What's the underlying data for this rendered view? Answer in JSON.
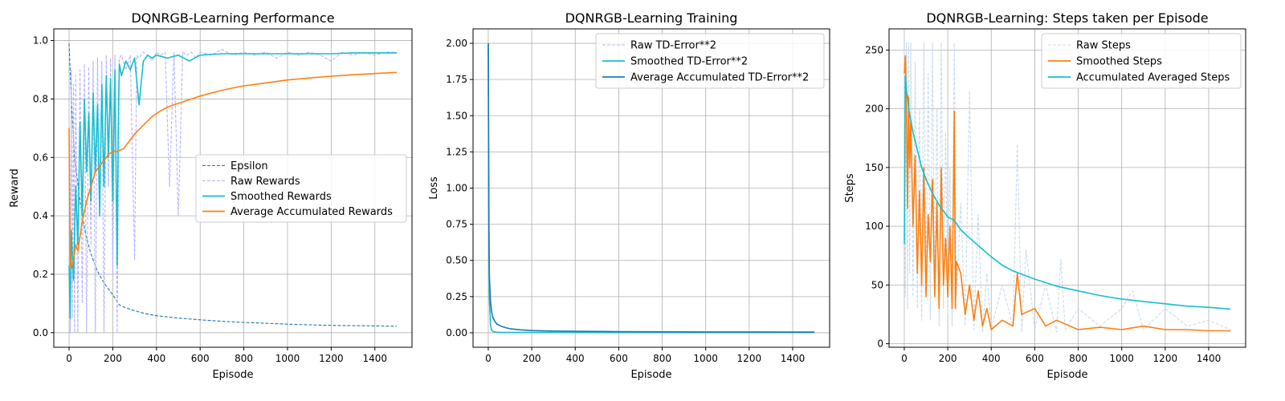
{
  "chart_data": [
    {
      "type": "line",
      "title": "DQNRGB-Learning Performance",
      "xlabel": "Episode",
      "ylabel": "Reward",
      "xlim": [
        -70,
        1570
      ],
      "ylim": [
        -0.05,
        1.04
      ],
      "xticks": [
        0,
        200,
        400,
        600,
        800,
        1000,
        1200,
        1400
      ],
      "yticks": [
        0.0,
        0.2,
        0.4,
        0.6,
        0.8,
        1.0
      ],
      "ytick_labels": [
        "0.0",
        "0.2",
        "0.4",
        "0.6",
        "0.8",
        "1.0"
      ],
      "grid": true,
      "legend_position": "center-right",
      "series": [
        {
          "name": "Epsilon",
          "color": "#1f77b4",
          "style": "dashed",
          "x": [
            0,
            10,
            25,
            50,
            75,
            100,
            130,
            160,
            200,
            230,
            260,
            300,
            350,
            400,
            500,
            600,
            700,
            800,
            900,
            1000,
            1100,
            1200,
            1300,
            1400,
            1500
          ],
          "y": [
            0.99,
            0.8,
            0.6,
            0.45,
            0.34,
            0.27,
            0.21,
            0.17,
            0.13,
            0.095,
            0.085,
            0.075,
            0.065,
            0.058,
            0.05,
            0.044,
            0.039,
            0.035,
            0.032,
            0.029,
            0.027,
            0.025,
            0.024,
            0.023,
            0.022
          ]
        },
        {
          "name": "Raw Rewards",
          "color": "#b3b3ff",
          "style": "dashed",
          "x": [
            0,
            5,
            10,
            15,
            20,
            25,
            30,
            40,
            50,
            60,
            70,
            80,
            90,
            100,
            110,
            120,
            130,
            140,
            150,
            160,
            170,
            180,
            190,
            200,
            210,
            220,
            230,
            240,
            260,
            280,
            300,
            310,
            320,
            340,
            360,
            380,
            400,
            420,
            440,
            460,
            480,
            500,
            520,
            540,
            560,
            580,
            600,
            650,
            700,
            750,
            800,
            850,
            900,
            950,
            1000,
            1050,
            1100,
            1150,
            1200,
            1250,
            1300,
            1350,
            1400,
            1450,
            1500
          ],
          "y": [
            0.7,
            0.0,
            0.9,
            0.05,
            0.85,
            0.0,
            0.88,
            0.0,
            0.9,
            0.1,
            0.92,
            0.0,
            0.91,
            0.3,
            0.93,
            0.0,
            0.94,
            0.4,
            0.93,
            0.0,
            0.95,
            0.5,
            0.94,
            0.2,
            0.95,
            0.0,
            0.94,
            0.95,
            0.9,
            0.95,
            0.25,
            0.95,
            0.94,
            0.96,
            0.95,
            0.93,
            0.96,
            0.95,
            0.96,
            0.5,
            0.96,
            0.4,
            0.96,
            0.95,
            0.96,
            0.94,
            0.96,
            0.95,
            0.97,
            0.95,
            0.96,
            0.95,
            0.96,
            0.94,
            0.96,
            0.95,
            0.96,
            0.95,
            0.93,
            0.96,
            0.95,
            0.96,
            0.95,
            0.96,
            0.96
          ]
        },
        {
          "name": "Smoothed Rewards",
          "color": "#17becf",
          "style": "solid",
          "x": [
            0,
            5,
            10,
            20,
            30,
            40,
            50,
            60,
            70,
            80,
            90,
            100,
            110,
            120,
            130,
            140,
            150,
            160,
            170,
            180,
            190,
            200,
            210,
            220,
            225,
            230,
            240,
            260,
            280,
            300,
            320,
            340,
            360,
            380,
            400,
            450,
            500,
            550,
            600,
            700,
            800,
            900,
            1000,
            1100,
            1200,
            1300,
            1400,
            1500
          ],
          "y": [
            0.23,
            0.05,
            0.35,
            0.18,
            0.5,
            0.3,
            0.72,
            0.4,
            0.8,
            0.55,
            0.75,
            0.45,
            0.82,
            0.55,
            0.78,
            0.4,
            0.85,
            0.5,
            0.88,
            0.6,
            0.87,
            0.45,
            0.9,
            0.23,
            0.7,
            0.92,
            0.88,
            0.93,
            0.9,
            0.94,
            0.78,
            0.93,
            0.95,
            0.94,
            0.95,
            0.94,
            0.95,
            0.93,
            0.95,
            0.955,
            0.955,
            0.955,
            0.955,
            0.955,
            0.955,
            0.958,
            0.958,
            0.958
          ]
        },
        {
          "name": "Average Accumulated Rewards",
          "color": "#ff7f0e",
          "style": "solid",
          "x": [
            0,
            5,
            10,
            20,
            30,
            40,
            60,
            80,
            100,
            120,
            150,
            180,
            200,
            220,
            250,
            280,
            300,
            340,
            380,
            420,
            460,
            500,
            600,
            700,
            800,
            900,
            1000,
            1100,
            1200,
            1300,
            1400,
            1500
          ],
          "y": [
            0.7,
            0.23,
            0.22,
            0.25,
            0.3,
            0.28,
            0.38,
            0.45,
            0.5,
            0.55,
            0.58,
            0.61,
            0.62,
            0.62,
            0.63,
            0.66,
            0.68,
            0.71,
            0.74,
            0.76,
            0.775,
            0.785,
            0.81,
            0.83,
            0.845,
            0.855,
            0.865,
            0.872,
            0.878,
            0.883,
            0.887,
            0.891
          ]
        }
      ]
    },
    {
      "type": "line",
      "title": "DQNRGB-Learning Training",
      "xlabel": "Episode",
      "ylabel": "Loss",
      "xlim": [
        -70,
        1570
      ],
      "ylim": [
        -0.1,
        2.1
      ],
      "xticks": [
        0,
        200,
        400,
        600,
        800,
        1000,
        1200,
        1400
      ],
      "yticks": [
        0.0,
        0.25,
        0.5,
        0.75,
        1.0,
        1.25,
        1.5,
        1.75,
        2.0
      ],
      "ytick_labels": [
        "0.00",
        "0.25",
        "0.50",
        "0.75",
        "1.00",
        "1.25",
        "1.50",
        "1.75",
        "2.00"
      ],
      "grid": true,
      "legend_position": "upper-right",
      "series": [
        {
          "name": "Raw TD-Error**2",
          "color": "#b3b3ff",
          "style": "dashed",
          "x": [
            0,
            2,
            5,
            10,
            15,
            20,
            30,
            50,
            100,
            200,
            400,
            800,
            1200,
            1500
          ],
          "y": [
            2.0,
            0.8,
            0.2,
            0.05,
            0.02,
            0.01,
            0.005,
            0.004,
            0.003,
            0.003,
            0.002,
            0.002,
            0.002,
            0.002
          ]
        },
        {
          "name": "Smoothed TD-Error**2",
          "color": "#17becf",
          "style": "solid",
          "x": [
            0,
            2,
            5,
            10,
            15,
            20,
            30,
            50,
            100,
            200,
            400,
            800,
            1200,
            1500
          ],
          "y": [
            2.0,
            0.9,
            0.25,
            0.06,
            0.02,
            0.01,
            0.005,
            0.003,
            0.002,
            0.002,
            0.002,
            0.002,
            0.002,
            0.002
          ]
        },
        {
          "name": "Average Accumulated TD-Error**2",
          "color": "#1f77b4",
          "style": "solid",
          "x": [
            0,
            1,
            3,
            5,
            10,
            15,
            20,
            30,
            40,
            60,
            80,
            100,
            150,
            200,
            300,
            400,
            600,
            800,
            1000,
            1200,
            1400,
            1500
          ],
          "y": [
            2.0,
            1.6,
            0.7,
            0.4,
            0.22,
            0.15,
            0.11,
            0.08,
            0.06,
            0.045,
            0.035,
            0.028,
            0.02,
            0.015,
            0.012,
            0.01,
            0.008,
            0.007,
            0.006,
            0.006,
            0.005,
            0.005
          ]
        }
      ]
    },
    {
      "type": "line",
      "title": "DQNRGB-Learning: Steps taken per Episode",
      "xlabel": "Episode",
      "ylabel": "Steps",
      "xlim": [
        -70,
        1570
      ],
      "ylim": [
        -3,
        268
      ],
      "xticks": [
        0,
        200,
        400,
        600,
        800,
        1000,
        1200,
        1400
      ],
      "yticks": [
        0,
        50,
        100,
        150,
        200,
        250
      ],
      "ytick_labels": [
        "0",
        "50",
        "100",
        "150",
        "200",
        "250"
      ],
      "grid": true,
      "legend_position": "upper-right",
      "series": [
        {
          "name": "Raw Steps",
          "color": "#c6dbef",
          "style": "dashed",
          "x": [
            0,
            5,
            10,
            15,
            20,
            25,
            30,
            40,
            50,
            60,
            70,
            80,
            90,
            100,
            110,
            120,
            130,
            140,
            150,
            160,
            170,
            180,
            190,
            200,
            210,
            220,
            230,
            240,
            260,
            280,
            300,
            320,
            340,
            360,
            380,
            400,
            450,
            500,
            520,
            540,
            560,
            600,
            650,
            700,
            720,
            740,
            800,
            900,
            1000,
            1050,
            1100,
            1200,
            1300,
            1400,
            1500
          ],
          "y": [
            250,
            40,
            256,
            30,
            256,
            60,
            256,
            40,
            240,
            30,
            200,
            20,
            256,
            50,
            230,
            20,
            256,
            40,
            200,
            15,
            256,
            30,
            180,
            25,
            150,
            15,
            256,
            40,
            120,
            15,
            215,
            12,
            110,
            10,
            60,
            12,
            50,
            15,
            170,
            10,
            80,
            12,
            50,
            10,
            72,
            12,
            30,
            15,
            30,
            45,
            12,
            30,
            15,
            20,
            12
          ]
        },
        {
          "name": "Smoothed Steps",
          "color": "#ff7f0e",
          "style": "solid",
          "x": [
            0,
            5,
            10,
            15,
            20,
            25,
            30,
            40,
            50,
            60,
            70,
            80,
            90,
            100,
            110,
            120,
            130,
            140,
            150,
            160,
            170,
            180,
            190,
            200,
            210,
            220,
            230,
            235,
            240,
            260,
            280,
            300,
            320,
            340,
            360,
            380,
            400,
            450,
            500,
            520,
            540,
            600,
            650,
            700,
            800,
            900,
            1000,
            1100,
            1200,
            1300,
            1400,
            1500
          ],
          "y": [
            230,
            245,
            200,
            115,
            210,
            150,
            190,
            100,
            160,
            60,
            130,
            50,
            150,
            40,
            110,
            70,
            140,
            40,
            120,
            30,
            150,
            50,
            90,
            40,
            100,
            30,
            198,
            30,
            70,
            60,
            25,
            50,
            20,
            45,
            15,
            30,
            12,
            20,
            15,
            60,
            25,
            30,
            15,
            20,
            12,
            14,
            12,
            15,
            12,
            12,
            11,
            11
          ]
        },
        {
          "name": "Accumulated Averaged Steps",
          "color": "#17becf",
          "style": "solid",
          "x": [
            0,
            5,
            10,
            15,
            20,
            30,
            40,
            60,
            80,
            100,
            130,
            160,
            200,
            230,
            260,
            300,
            350,
            400,
            450,
            500,
            600,
            700,
            800,
            900,
            1000,
            1100,
            1200,
            1300,
            1400,
            1500
          ],
          "y": [
            85,
            228,
            215,
            210,
            200,
            190,
            180,
            165,
            150,
            140,
            128,
            118,
            108,
            105,
            97,
            90,
            82,
            74,
            67,
            62,
            55,
            49,
            45,
            41,
            38,
            36,
            34,
            32,
            31,
            29.5
          ]
        }
      ]
    }
  ]
}
